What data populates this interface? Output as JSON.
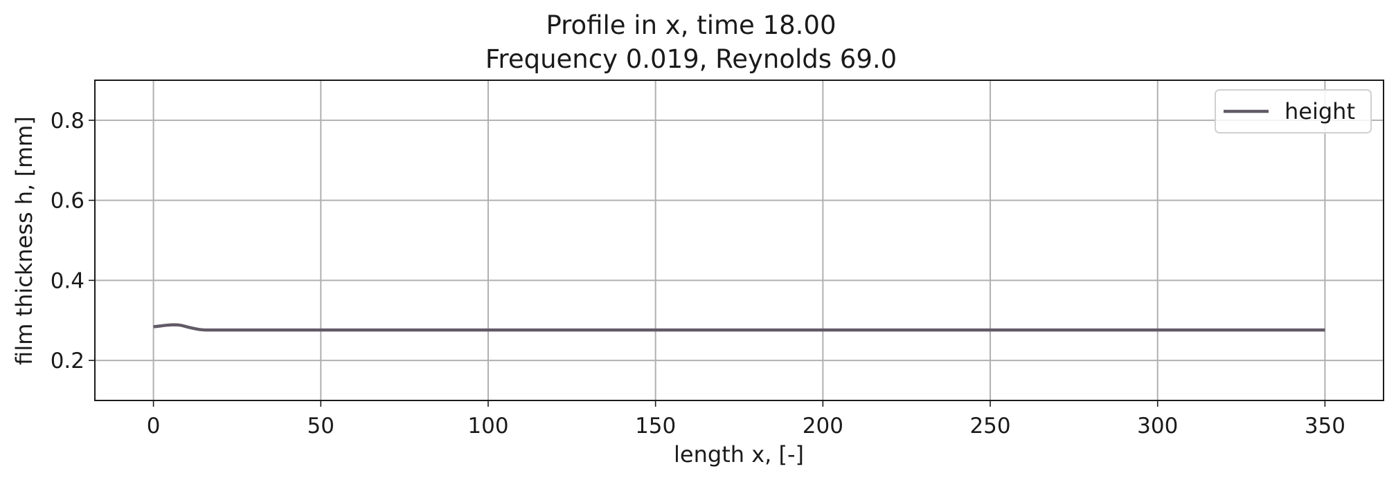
{
  "chart_data": {
    "type": "line",
    "title": [
      "Profile in x, time 18.00",
      "Frequency 0.019, Reynolds 69.0"
    ],
    "xlabel": "length x, [-]",
    "ylabel": "film thickness h, [mm]",
    "xlim": [
      -17.5,
      367.5
    ],
    "ylim": [
      0.1,
      0.9
    ],
    "xticks": [
      0,
      50,
      100,
      150,
      200,
      250,
      300,
      350
    ],
    "yticks": [
      0.2,
      0.4,
      0.6,
      0.8
    ],
    "xtick_labels": [
      "0",
      "50",
      "100",
      "150",
      "200",
      "250",
      "300",
      "350"
    ],
    "ytick_labels": [
      "0.2",
      "0.4",
      "0.6",
      "0.8"
    ],
    "grid": true,
    "legend": {
      "position": "top-right"
    },
    "series": [
      {
        "name": "height",
        "color": "#625a66",
        "x": [
          0,
          2,
          4,
          6,
          8,
          10,
          12,
          14,
          16,
          18,
          20,
          25,
          30,
          50,
          100,
          150,
          200,
          250,
          300,
          350
        ],
        "y": [
          0.284,
          0.286,
          0.288,
          0.289,
          0.288,
          0.284,
          0.28,
          0.277,
          0.276,
          0.276,
          0.276,
          0.276,
          0.276,
          0.276,
          0.276,
          0.276,
          0.276,
          0.276,
          0.276,
          0.276
        ]
      }
    ]
  }
}
